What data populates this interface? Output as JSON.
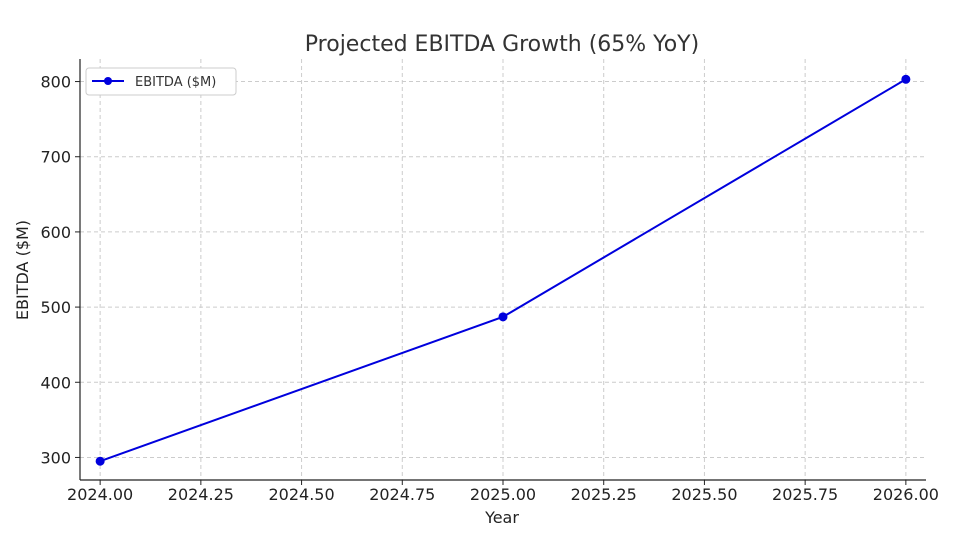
{
  "chart_data": {
    "type": "line",
    "title": "Projected EBITDA Growth (65% YoY)",
    "xlabel": "Year",
    "ylabel": "EBITDA ($M)",
    "xlim": [
      2023.95,
      2026.05
    ],
    "ylim": [
      270,
      830
    ],
    "x_ticks": [
      2024.0,
      2024.25,
      2024.5,
      2024.75,
      2025.0,
      2025.25,
      2025.5,
      2025.75,
      2026.0
    ],
    "x_tick_labels": [
      "2024.00",
      "2024.25",
      "2024.50",
      "2024.75",
      "2025.00",
      "2025.25",
      "2025.50",
      "2025.75",
      "2026.00"
    ],
    "y_ticks": [
      300,
      400,
      500,
      600,
      700,
      800
    ],
    "y_tick_labels": [
      "300",
      "400",
      "500",
      "600",
      "700",
      "800"
    ],
    "grid": true,
    "legend_position": "top-left",
    "series": [
      {
        "name": "EBITDA ($M)",
        "color": "#0000dd",
        "marker": "circle",
        "x": [
          2024,
          2025,
          2026
        ],
        "values": [
          295,
          487,
          803
        ]
      }
    ]
  }
}
